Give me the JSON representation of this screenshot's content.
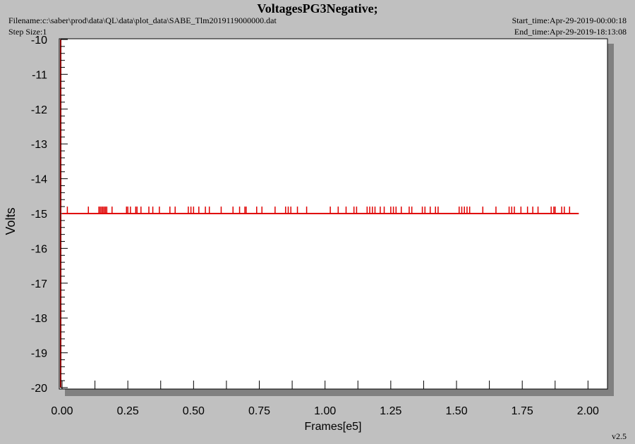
{
  "header": {
    "title": "VoltagesPG3Negative;",
    "filename": "Filename:c:\\saber\\prod\\data\\QL\\data\\plot_data\\SABE_Tlm2019119000000.dat",
    "step_size": "Step Size:1",
    "start_time": "Start_time:Apr-29-2019-00:00:18",
    "end_time": "End_time:Apr-29-2019-18:13:08"
  },
  "footer": {
    "version": "v2.5"
  },
  "colors": {
    "series": "#e00000",
    "plot_bg": "#ffffff",
    "page_bg": "#c0c0c0",
    "axis": "#8b0000",
    "shadow": "#808080"
  },
  "chart_data": {
    "type": "line",
    "title": "VoltagesPG3Negative;",
    "xlabel": "Frames[e5]",
    "ylabel": "Volts",
    "xlim": [
      0,
      2.05
    ],
    "ylim": [
      -20,
      -10
    ],
    "x_ticks": [
      "0.00",
      "0.25",
      "0.50",
      "0.75",
      "1.00",
      "1.25",
      "1.50",
      "1.75",
      "2.00"
    ],
    "y_ticks": [
      "-10",
      "-11",
      "-12",
      "-13",
      "-14",
      "-15",
      "-16",
      "-17",
      "-18",
      "-19",
      "-20"
    ],
    "grid": false,
    "series": [
      {
        "baseline": {
          "x": [
            0,
            1.965
          ],
          "y": -15
        },
        "spike_value": -14.8,
        "spikes_x": [
          0.02,
          0.1,
          0.14,
          0.145,
          0.15,
          0.155,
          0.16,
          0.165,
          0.17,
          0.19,
          0.245,
          0.25,
          0.26,
          0.28,
          0.285,
          0.3,
          0.33,
          0.345,
          0.37,
          0.41,
          0.43,
          0.48,
          0.49,
          0.5,
          0.52,
          0.545,
          0.56,
          0.605,
          0.65,
          0.675,
          0.695,
          0.7,
          0.74,
          0.76,
          0.81,
          0.85,
          0.86,
          0.87,
          0.895,
          0.93,
          1.02,
          1.05,
          1.08,
          1.11,
          1.12,
          1.16,
          1.17,
          1.18,
          1.19,
          1.21,
          1.225,
          1.25,
          1.26,
          1.27,
          1.29,
          1.32,
          1.33,
          1.37,
          1.38,
          1.4,
          1.42,
          1.43,
          1.51,
          1.52,
          1.53,
          1.54,
          1.55,
          1.6,
          1.65,
          1.7,
          1.71,
          1.72,
          1.745,
          1.77,
          1.79,
          1.81,
          1.86,
          1.87,
          1.875,
          1.9,
          1.91,
          1.93
        ]
      }
    ]
  }
}
